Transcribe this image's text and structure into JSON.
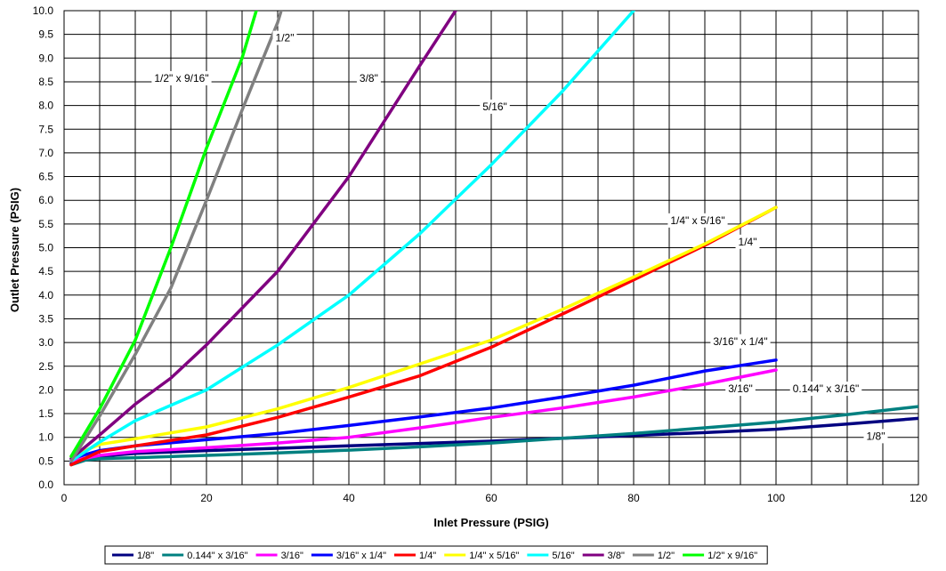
{
  "chart_data": {
    "type": "line",
    "title": "",
    "xlabel": "Inlet Pressure  (PSIG)",
    "ylabel": "Outlet Pressure  (PSIG)",
    "xlim": [
      0,
      120
    ],
    "ylim": [
      0,
      10
    ],
    "x_ticks": [
      "0",
      "20",
      "40",
      "60",
      "80",
      "100",
      "120"
    ],
    "y_ticks": [
      "0.0",
      "0.5",
      "1.0",
      "1.5",
      "2.0",
      "2.5",
      "3.0",
      "3.5",
      "4.0",
      "4.5",
      "5.0",
      "5.5",
      "6.0",
      "6.5",
      "7.0",
      "7.5",
      "8.0",
      "8.5",
      "9.0",
      "9.5",
      "10.0"
    ],
    "x_grid_step": 5,
    "y_grid_step": 0.5,
    "grid": true,
    "legend_position": "bottom",
    "series": [
      {
        "name": "1/8\"",
        "color": "#000080",
        "label": "1/8\"",
        "points": [
          [
            1,
            0.45
          ],
          [
            2,
            0.52
          ],
          [
            5,
            0.6
          ],
          [
            10,
            0.66
          ],
          [
            20,
            0.72
          ],
          [
            30,
            0.77
          ],
          [
            40,
            0.82
          ],
          [
            50,
            0.87
          ],
          [
            60,
            0.92
          ],
          [
            70,
            0.98
          ],
          [
            80,
            1.04
          ],
          [
            90,
            1.1
          ],
          [
            100,
            1.17
          ],
          [
            110,
            1.28
          ],
          [
            120,
            1.4
          ]
        ]
      },
      {
        "name": "0.144\" x 3/16\"",
        "color": "#008080",
        "label": "0.144\" x 3/16\"",
        "points": [
          [
            1,
            0.42
          ],
          [
            3,
            0.52
          ],
          [
            5,
            0.55
          ],
          [
            10,
            0.57
          ],
          [
            20,
            0.62
          ],
          [
            30,
            0.67
          ],
          [
            40,
            0.73
          ],
          [
            50,
            0.8
          ],
          [
            60,
            0.88
          ],
          [
            70,
            0.98
          ],
          [
            80,
            1.08
          ],
          [
            90,
            1.2
          ],
          [
            100,
            1.32
          ],
          [
            110,
            1.48
          ],
          [
            120,
            1.65
          ]
        ]
      },
      {
        "name": "3/16\"",
        "color": "#ff00ff",
        "label": "3/16\"",
        "points": [
          [
            1,
            0.5
          ],
          [
            5,
            0.62
          ],
          [
            10,
            0.7
          ],
          [
            20,
            0.78
          ],
          [
            30,
            0.88
          ],
          [
            40,
            1.0
          ],
          [
            50,
            1.2
          ],
          [
            60,
            1.42
          ],
          [
            70,
            1.62
          ],
          [
            80,
            1.85
          ],
          [
            90,
            2.12
          ],
          [
            100,
            2.42
          ]
        ]
      },
      {
        "name": "3/16\" x 1/4\"",
        "color": "#0000ff",
        "label": "3/16\" x 1/4\"",
        "points": [
          [
            1,
            0.55
          ],
          [
            5,
            0.72
          ],
          [
            10,
            0.82
          ],
          [
            20,
            0.95
          ],
          [
            30,
            1.08
          ],
          [
            40,
            1.25
          ],
          [
            50,
            1.43
          ],
          [
            60,
            1.62
          ],
          [
            70,
            1.85
          ],
          [
            80,
            2.1
          ],
          [
            90,
            2.4
          ],
          [
            100,
            2.63
          ]
        ]
      },
      {
        "name": "1/4\"",
        "color": "#ff0000",
        "label": "1/4\"",
        "points": [
          [
            1,
            0.42
          ],
          [
            5,
            0.7
          ],
          [
            10,
            0.82
          ],
          [
            20,
            1.05
          ],
          [
            30,
            1.42
          ],
          [
            40,
            1.85
          ],
          [
            50,
            2.3
          ],
          [
            60,
            2.9
          ],
          [
            70,
            3.6
          ],
          [
            80,
            4.32
          ],
          [
            90,
            5.05
          ],
          [
            100,
            5.85
          ]
        ]
      },
      {
        "name": "1/4\" x 5/16\"",
        "color": "#ffff00",
        "label": "1/4\" x 5/16\"",
        "points": [
          [
            1,
            0.6
          ],
          [
            5,
            0.85
          ],
          [
            10,
            0.97
          ],
          [
            20,
            1.22
          ],
          [
            30,
            1.6
          ],
          [
            40,
            2.05
          ],
          [
            50,
            2.55
          ],
          [
            60,
            3.05
          ],
          [
            70,
            3.7
          ],
          [
            80,
            4.38
          ],
          [
            90,
            5.08
          ],
          [
            100,
            5.85
          ]
        ]
      },
      {
        "name": "5/16\"",
        "color": "#00ffff",
        "label": "5/16\"",
        "points": [
          [
            1,
            0.5
          ],
          [
            5,
            0.9
          ],
          [
            10,
            1.35
          ],
          [
            20,
            2.0
          ],
          [
            30,
            2.95
          ],
          [
            40,
            4.0
          ],
          [
            50,
            5.3
          ],
          [
            60,
            6.75
          ],
          [
            70,
            8.3
          ],
          [
            80,
            10.0
          ]
        ]
      },
      {
        "name": "3/8\"",
        "color": "#800080",
        "label": "3/8\"",
        "points": [
          [
            1,
            0.55
          ],
          [
            5,
            1.05
          ],
          [
            10,
            1.7
          ],
          [
            15,
            2.25
          ],
          [
            20,
            2.95
          ],
          [
            30,
            4.5
          ],
          [
            40,
            6.5
          ],
          [
            50,
            8.85
          ],
          [
            55,
            10.0
          ]
        ]
      },
      {
        "name": "1/2\"",
        "color": "#808080",
        "label": "1/2\"",
        "points": [
          [
            1,
            0.5
          ],
          [
            5,
            1.45
          ],
          [
            10,
            2.75
          ],
          [
            15,
            4.15
          ],
          [
            20,
            6.0
          ],
          [
            25,
            7.9
          ],
          [
            30,
            9.75
          ],
          [
            30.5,
            10.0
          ]
        ]
      },
      {
        "name": "1/2\" x 9/16\"",
        "color": "#00ff00",
        "label": "1/2\" x 9/16\"",
        "points": [
          [
            1,
            0.6
          ],
          [
            5,
            1.6
          ],
          [
            10,
            3.05
          ],
          [
            15,
            5.0
          ],
          [
            20,
            7.1
          ],
          [
            25,
            9.0
          ],
          [
            27,
            10.0
          ]
        ]
      }
    ]
  }
}
